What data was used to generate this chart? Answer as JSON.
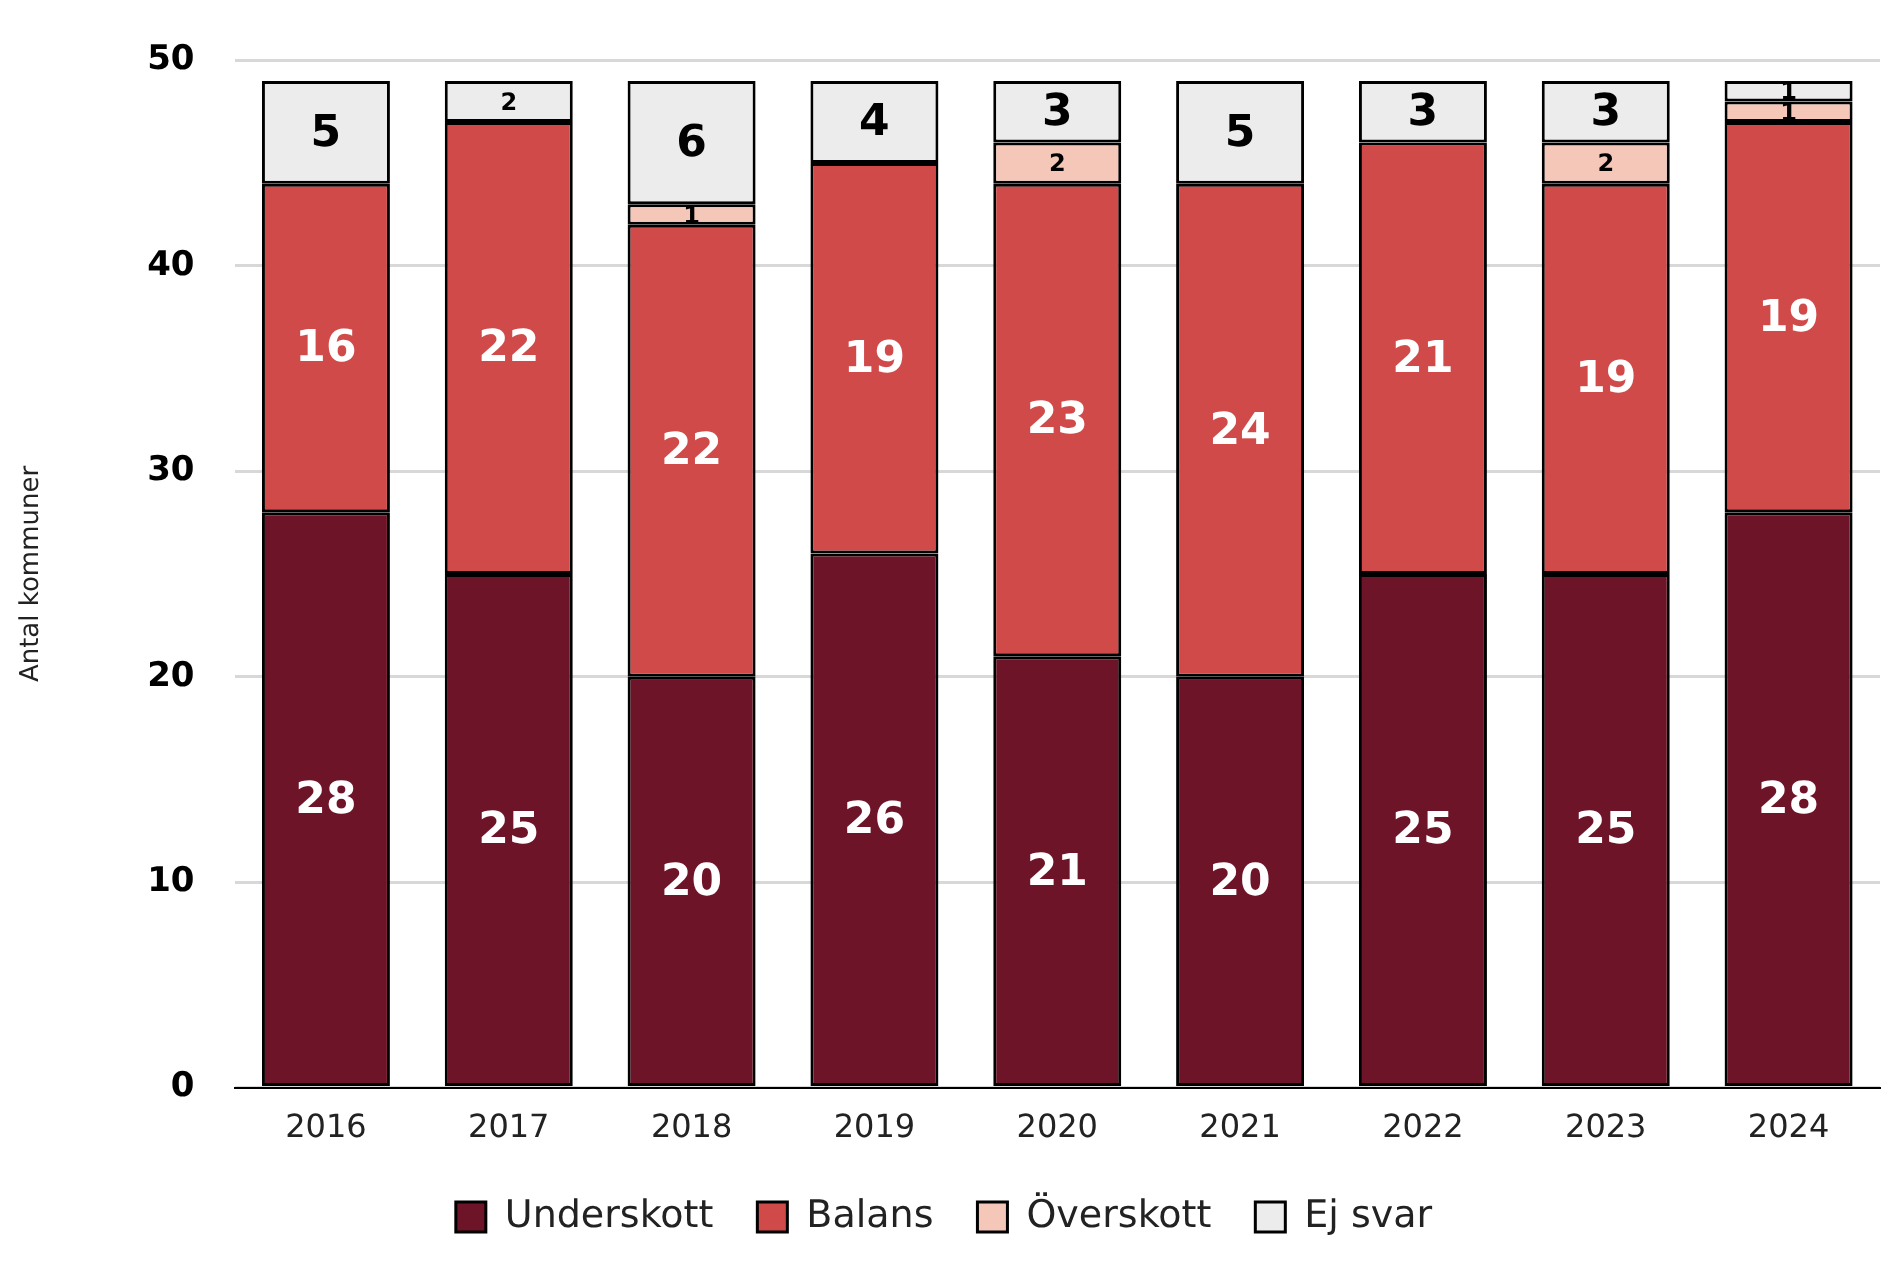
{
  "chart_data": {
    "type": "bar",
    "stacked": true,
    "ylabel": "Antal kommuner",
    "categories": [
      "2016",
      "2017",
      "2018",
      "2019",
      "2020",
      "2021",
      "2022",
      "2023",
      "2024"
    ],
    "series": [
      {
        "name": "Underskott",
        "color": "#6e1428",
        "values": [
          28,
          25,
          20,
          26,
          21,
          20,
          25,
          25,
          28
        ]
      },
      {
        "name": "Balans",
        "color": "#d04a4a",
        "values": [
          16,
          22,
          22,
          19,
          23,
          24,
          21,
          19,
          19
        ]
      },
      {
        "name": "Överskott",
        "color": "#f4c7b8",
        "values": [
          0,
          0,
          1,
          0,
          2,
          0,
          0,
          2,
          1
        ],
        "value_labels": [
          null,
          null,
          "1",
          null,
          "2",
          null,
          null,
          "2",
          "1"
        ]
      },
      {
        "name": "Ej svar",
        "color": "#ececec",
        "values": [
          5,
          2,
          6,
          4,
          3,
          5,
          3,
          3,
          1
        ]
      }
    ],
    "ylim": [
      0,
      50
    ],
    "yticks": [
      0,
      10,
      20,
      30,
      40,
      50
    ],
    "grid": "y",
    "data_labels": true,
    "legend": "bottom"
  }
}
